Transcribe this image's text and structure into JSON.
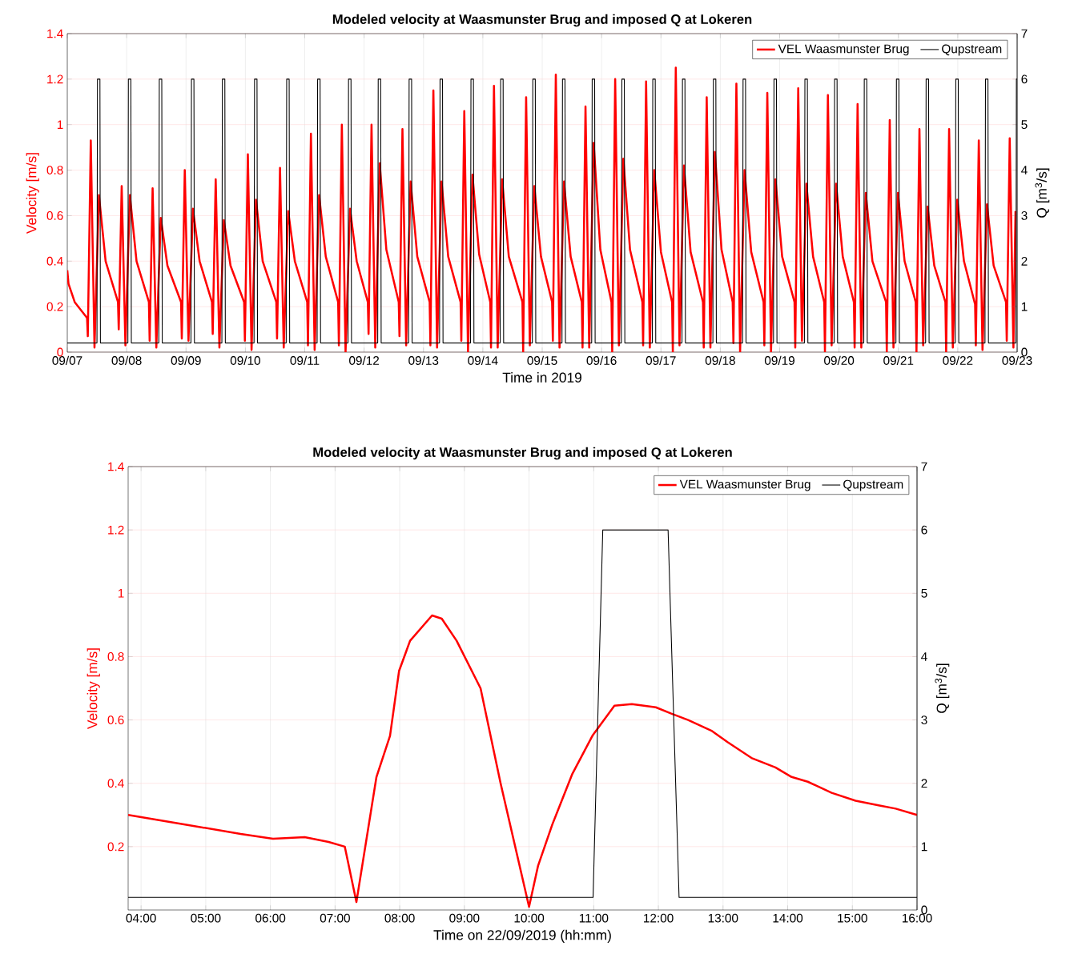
{
  "chart_data": [
    {
      "type": "line",
      "title": "Modeled velocity at Waasmunster Brug and imposed Q at Lokeren",
      "xlabel": "Time in 2019",
      "ylabel": "Velocity [m/s]",
      "y2label": "Q [m$^{3}$/s]",
      "xlim": [
        "2019-09-07",
        "2019-09-23"
      ],
      "xticks": [
        {
          "value": "2019-09-07",
          "label": "09/07"
        },
        {
          "value": "2019-09-08",
          "label": "09/08"
        },
        {
          "value": "2019-09-09",
          "label": "09/09"
        },
        {
          "value": "2019-09-10",
          "label": "09/10"
        },
        {
          "value": "2019-09-11",
          "label": "09/11"
        },
        {
          "value": "2019-09-12",
          "label": "09/12"
        },
        {
          "value": "2019-09-13",
          "label": "09/13"
        },
        {
          "value": "2019-09-14",
          "label": "09/14"
        },
        {
          "value": "2019-09-15",
          "label": "09/15"
        },
        {
          "value": "2019-09-16",
          "label": "09/16"
        },
        {
          "value": "2019-09-17",
          "label": "09/17"
        },
        {
          "value": "2019-09-18",
          "label": "09/18"
        },
        {
          "value": "2019-09-19",
          "label": "09/19"
        },
        {
          "value": "2019-09-20",
          "label": "09/20"
        },
        {
          "value": "2019-09-21",
          "label": "09/21"
        },
        {
          "value": "2019-09-22",
          "label": "09/22"
        },
        {
          "value": "2019-09-23",
          "label": "09/23"
        }
      ],
      "ylim": [
        0,
        1.4
      ],
      "yticks": [
        0,
        0.2,
        0.4,
        0.6,
        0.8,
        1,
        1.2,
        1.4
      ],
      "y2lim": [
        0,
        7
      ],
      "y2ticks": [
        0,
        1,
        2,
        3,
        4,
        5,
        6,
        7
      ],
      "grid": true,
      "legend": "top right",
      "series": [
        {
          "name": "VEL Waasmunster Brug",
          "color": "#ff0000",
          "axis": "y",
          "x": [
            "2019-09-07T00:00",
            "2019-09-07T00:30",
            "2019-09-07T03:00",
            "2019-09-07T08:00",
            "2019-09-07T08:18",
            "2019-09-07T09:30",
            "2019-09-07T11:00",
            "2019-09-07T12:48",
            "2019-09-07T15:30",
            "2019-09-07T20:30",
            "2019-09-07T20:48",
            "2019-09-07T22:00",
            "2019-09-07T23:30",
            "2019-09-08T01:18",
            "2019-09-08T04:00",
            "2019-09-08T09:00",
            "2019-09-08T09:18",
            "2019-09-08T10:30",
            "2019-09-08T12:00",
            "2019-09-08T13:48",
            "2019-09-08T16:30",
            "2019-09-08T22:00",
            "2019-09-08T22:18",
            "2019-09-08T23:30",
            "2019-09-09T01:00",
            "2019-09-09T02:48",
            "2019-09-09T05:30",
            "2019-09-09T10:30",
            "2019-09-09T10:48",
            "2019-09-09T12:00",
            "2019-09-09T13:30",
            "2019-09-09T15:18",
            "2019-09-09T18:00",
            "2019-09-09T23:30",
            "2019-09-09T23:48",
            "2019-09-10T01:00",
            "2019-09-10T02:30",
            "2019-09-10T04:18",
            "2019-09-10T07:00",
            "2019-09-10T12:30",
            "2019-09-10T12:48",
            "2019-09-10T14:00",
            "2019-09-10T15:30",
            "2019-09-10T17:18",
            "2019-09-10T20:00",
            "2019-09-11T01:00",
            "2019-09-11T01:18",
            "2019-09-11T02:30",
            "2019-09-11T04:00",
            "2019-09-11T05:48",
            "2019-09-11T08:30",
            "2019-09-11T13:30",
            "2019-09-11T13:48",
            "2019-09-11T15:00",
            "2019-09-11T16:30",
            "2019-09-11T18:18",
            "2019-09-11T21:00",
            "2019-09-12T01:30",
            "2019-09-12T01:48",
            "2019-09-12T03:00",
            "2019-09-12T04:30",
            "2019-09-12T06:18",
            "2019-09-12T09:00",
            "2019-09-12T14:00",
            "2019-09-12T14:18",
            "2019-09-12T15:30",
            "2019-09-12T17:00",
            "2019-09-12T18:48",
            "2019-09-12T21:30",
            "2019-09-13T02:30",
            "2019-09-13T02:48",
            "2019-09-13T04:00",
            "2019-09-13T05:30",
            "2019-09-13T07:18",
            "2019-09-13T10:00",
            "2019-09-13T15:00",
            "2019-09-13T15:18",
            "2019-09-13T16:30",
            "2019-09-13T18:00",
            "2019-09-13T19:48",
            "2019-09-13T22:30",
            "2019-09-14T03:00",
            "2019-09-14T03:18",
            "2019-09-14T04:30",
            "2019-09-14T06:00",
            "2019-09-14T07:48",
            "2019-09-14T10:30",
            "2019-09-14T16:00",
            "2019-09-14T16:18",
            "2019-09-14T17:30",
            "2019-09-14T19:00",
            "2019-09-14T20:48",
            "2019-09-14T23:30",
            "2019-09-15T04:00",
            "2019-09-15T04:18",
            "2019-09-15T05:30",
            "2019-09-15T07:00",
            "2019-09-15T08:48",
            "2019-09-15T11:30",
            "2019-09-15T16:00",
            "2019-09-15T16:18",
            "2019-09-15T17:30",
            "2019-09-15T19:00",
            "2019-09-15T20:48",
            "2019-09-15T23:30",
            "2019-09-16T04:00",
            "2019-09-16T04:18",
            "2019-09-16T05:30",
            "2019-09-16T07:00",
            "2019-09-16T08:48",
            "2019-09-16T11:30",
            "2019-09-16T16:30",
            "2019-09-16T16:48",
            "2019-09-16T18:00",
            "2019-09-16T19:30",
            "2019-09-16T21:18",
            "2019-09-17T00:00",
            "2019-09-17T04:30",
            "2019-09-17T04:48",
            "2019-09-17T06:00",
            "2019-09-17T07:30",
            "2019-09-17T09:18",
            "2019-09-17T12:00",
            "2019-09-17T17:00",
            "2019-09-17T17:18",
            "2019-09-17T18:30",
            "2019-09-17T20:00",
            "2019-09-17T21:48",
            "2019-09-18T00:30",
            "2019-09-18T05:00",
            "2019-09-18T05:18",
            "2019-09-18T06:30",
            "2019-09-18T08:00",
            "2019-09-18T09:48",
            "2019-09-18T12:30",
            "2019-09-18T17:30",
            "2019-09-18T17:48",
            "2019-09-18T19:00",
            "2019-09-18T20:30",
            "2019-09-18T22:18",
            "2019-09-19T01:00",
            "2019-09-19T06:00",
            "2019-09-19T06:18",
            "2019-09-19T07:30",
            "2019-09-19T09:00",
            "2019-09-19T10:48",
            "2019-09-19T13:30",
            "2019-09-19T18:00",
            "2019-09-19T18:18",
            "2019-09-19T19:30",
            "2019-09-19T21:00",
            "2019-09-19T22:48",
            "2019-09-20T01:30",
            "2019-09-20T06:00",
            "2019-09-20T06:18",
            "2019-09-20T07:30",
            "2019-09-20T09:00",
            "2019-09-20T10:48",
            "2019-09-20T13:30",
            "2019-09-20T19:00",
            "2019-09-20T19:18",
            "2019-09-20T20:30",
            "2019-09-20T22:00",
            "2019-09-20T23:48",
            "2019-09-21T02:30",
            "2019-09-21T07:00",
            "2019-09-21T07:18",
            "2019-09-21T08:30",
            "2019-09-21T10:00",
            "2019-09-21T11:48",
            "2019-09-21T14:30",
            "2019-09-21T19:00",
            "2019-09-21T19:18",
            "2019-09-21T20:30",
            "2019-09-21T22:00",
            "2019-09-21T23:48",
            "2019-09-22T02:30",
            "2019-09-22T07:00",
            "2019-09-22T07:18",
            "2019-09-22T08:30",
            "2019-09-22T10:00",
            "2019-09-22T11:48",
            "2019-09-22T14:30",
            "2019-09-22T19:30",
            "2019-09-22T19:48",
            "2019-09-22T21:00",
            "2019-09-22T22:30",
            "2019-09-22T23:20"
          ],
          "values": [
            0.36,
            0.3,
            0.22,
            0.15,
            0.07,
            0.93,
            0.02,
            0.69,
            0.4,
            0.22,
            0.1,
            0.73,
            0.03,
            0.69,
            0.4,
            0.22,
            0.05,
            0.72,
            0.02,
            0.59,
            0.38,
            0.22,
            0.06,
            0.8,
            0.05,
            0.63,
            0.4,
            0.22,
            0.08,
            0.76,
            0.02,
            0.58,
            0.38,
            0.22,
            0.05,
            0.87,
            0.01,
            0.67,
            0.4,
            0.22,
            0.06,
            0.81,
            0.02,
            0.62,
            0.4,
            0.22,
            0.03,
            0.96,
            0.01,
            0.69,
            0.42,
            0.22,
            0.03,
            1.0,
            0.0,
            0.63,
            0.4,
            0.22,
            0.08,
            1.0,
            0.02,
            0.83,
            0.45,
            0.22,
            0.07,
            0.98,
            0.03,
            0.75,
            0.42,
            0.22,
            0.03,
            1.15,
            0.02,
            0.75,
            0.42,
            0.22,
            0.05,
            1.06,
            0.0,
            0.78,
            0.43,
            0.22,
            0.02,
            1.17,
            0.02,
            0.76,
            0.42,
            0.22,
            0.0,
            1.12,
            0.03,
            0.73,
            0.42,
            0.22,
            0.05,
            1.22,
            0.02,
            0.75,
            0.42,
            0.22,
            0.02,
            1.08,
            0.02,
            0.92,
            0.45,
            0.22,
            0.0,
            1.2,
            0.03,
            0.85,
            0.45,
            0.22,
            0.03,
            1.19,
            0.02,
            0.8,
            0.44,
            0.22,
            0.0,
            1.25,
            0.03,
            0.82,
            0.44,
            0.22,
            0.02,
            1.12,
            0.02,
            0.88,
            0.45,
            0.22,
            0.04,
            1.18,
            0.0,
            0.8,
            0.44,
            0.22,
            0.03,
            1.14,
            0.0,
            0.76,
            0.42,
            0.22,
            0.02,
            1.16,
            0.05,
            0.74,
            0.42,
            0.22,
            0.0,
            1.13,
            0.03,
            0.74,
            0.42,
            0.22,
            0.02,
            1.09,
            0.02,
            0.7,
            0.4,
            0.22,
            0.0,
            1.02,
            0.02,
            0.7,
            0.4,
            0.22,
            0.0,
            0.98,
            0.03,
            0.64,
            0.38,
            0.22,
            0.0,
            0.98,
            0.02,
            0.67,
            0.4,
            0.21,
            0.03,
            0.93,
            0.01,
            0.65,
            0.38,
            0.22,
            0.05,
            0.94,
            0.02,
            0.62
          ]
        },
        {
          "name": "Qupstream",
          "color": "#000000",
          "axis": "y2",
          "x": [
            "2019-09-07T00:00",
            "2019-09-07T12:00",
            "2019-09-07T12:12",
            "2019-09-07T13:12",
            "2019-09-07T13:24",
            "2019-09-08T00:30",
            "2019-09-08T00:42",
            "2019-09-08T01:42",
            "2019-09-08T01:54",
            "2019-09-08T13:00",
            "2019-09-08T13:12",
            "2019-09-08T14:12",
            "2019-09-08T14:24",
            "2019-09-09T02:00",
            "2019-09-09T02:12",
            "2019-09-09T03:12",
            "2019-09-09T03:24",
            "2019-09-09T14:30",
            "2019-09-09T14:42",
            "2019-09-09T15:42",
            "2019-09-09T15:54",
            "2019-09-10T03:30",
            "2019-09-10T03:42",
            "2019-09-10T04:42",
            "2019-09-10T04:54",
            "2019-09-10T16:30",
            "2019-09-10T16:42",
            "2019-09-10T17:42",
            "2019-09-10T17:54",
            "2019-09-11T05:00",
            "2019-09-11T05:12",
            "2019-09-11T06:12",
            "2019-09-11T06:24",
            "2019-09-11T17:30",
            "2019-09-11T17:42",
            "2019-09-11T18:42",
            "2019-09-11T18:54",
            "2019-09-12T05:30",
            "2019-09-12T05:42",
            "2019-09-12T06:42",
            "2019-09-12T06:54",
            "2019-09-12T18:00",
            "2019-09-12T18:12",
            "2019-09-12T19:12",
            "2019-09-12T19:24",
            "2019-09-13T06:30",
            "2019-09-13T06:42",
            "2019-09-13T07:42",
            "2019-09-13T07:54",
            "2019-09-13T19:00",
            "2019-09-13T19:12",
            "2019-09-13T20:12",
            "2019-09-13T20:24",
            "2019-09-14T07:00",
            "2019-09-14T07:12",
            "2019-09-14T08:12",
            "2019-09-14T08:24",
            "2019-09-14T20:00",
            "2019-09-14T20:12",
            "2019-09-14T21:12",
            "2019-09-14T21:24",
            "2019-09-15T08:00",
            "2019-09-15T08:12",
            "2019-09-15T09:12",
            "2019-09-15T09:24",
            "2019-09-15T20:00",
            "2019-09-15T20:12",
            "2019-09-15T21:12",
            "2019-09-15T21:24",
            "2019-09-16T08:00",
            "2019-09-16T08:12",
            "2019-09-16T09:12",
            "2019-09-16T09:24",
            "2019-09-16T20:30",
            "2019-09-16T20:42",
            "2019-09-16T21:42",
            "2019-09-16T21:54",
            "2019-09-17T08:30",
            "2019-09-17T08:42",
            "2019-09-17T09:42",
            "2019-09-17T09:54",
            "2019-09-17T21:00",
            "2019-09-17T21:12",
            "2019-09-17T22:12",
            "2019-09-17T22:24",
            "2019-09-18T09:00",
            "2019-09-18T09:12",
            "2019-09-18T10:12",
            "2019-09-18T10:24",
            "2019-09-18T21:30",
            "2019-09-18T21:42",
            "2019-09-18T22:42",
            "2019-09-18T22:54",
            "2019-09-19T10:00",
            "2019-09-19T10:12",
            "2019-09-19T11:12",
            "2019-09-19T11:24",
            "2019-09-19T22:00",
            "2019-09-19T22:12",
            "2019-09-19T23:12",
            "2019-09-19T23:24",
            "2019-09-20T10:00",
            "2019-09-20T10:12",
            "2019-09-20T11:12",
            "2019-09-20T11:24",
            "2019-09-20T23:00",
            "2019-09-20T23:12",
            "2019-09-21T00:12",
            "2019-09-21T00:24",
            "2019-09-21T11:00",
            "2019-09-21T11:12",
            "2019-09-21T12:12",
            "2019-09-21T12:24",
            "2019-09-21T23:00",
            "2019-09-21T23:12",
            "2019-09-22T00:12",
            "2019-09-22T00:24",
            "2019-09-22T11:00",
            "2019-09-22T11:12",
            "2019-09-22T12:12",
            "2019-09-22T12:24",
            "2019-09-22T23:30",
            "2019-09-22T23:42",
            "2019-09-23T00:00"
          ],
          "values": [
            0.2,
            0.2,
            6,
            6,
            0.2,
            0.2,
            6,
            6,
            0.2,
            0.2,
            6,
            6,
            0.2,
            0.2,
            6,
            6,
            0.2,
            0.2,
            6,
            6,
            0.2,
            0.2,
            6,
            6,
            0.2,
            0.2,
            6,
            6,
            0.2,
            0.2,
            6,
            6,
            0.2,
            0.2,
            6,
            6,
            0.2,
            0.2,
            6,
            6,
            0.2,
            0.2,
            6,
            6,
            0.2,
            0.2,
            6,
            6,
            0.2,
            0.2,
            6,
            6,
            0.2,
            0.2,
            6,
            6,
            0.2,
            0.2,
            6,
            6,
            0.2,
            0.2,
            6,
            6,
            0.2,
            0.2,
            6,
            6,
            0.2,
            0.2,
            6,
            6,
            0.2,
            0.2,
            6,
            6,
            0.2,
            0.2,
            6,
            6,
            0.2,
            0.2,
            6,
            6,
            0.2,
            0.2,
            6,
            6,
            0.2,
            0.2,
            6,
            6,
            0.2,
            0.2,
            6,
            6,
            0.2,
            0.2,
            6,
            6,
            0.2,
            0.2,
            6,
            6,
            0.2,
            0.2,
            6,
            6,
            0.2,
            0.2,
            6,
            6,
            0.2,
            0.2,
            6,
            6,
            0.2,
            0.2,
            6,
            6,
            0.2,
            0.2,
            6,
            6
          ]
        }
      ]
    },
    {
      "type": "line",
      "title": "Modeled velocity at Waasmunster Brug and imposed Q at Lokeren",
      "xlabel": "Time on 22/09/2019 (hh:mm)",
      "ylabel": "Velocity [m/s]",
      "y2label": "Q [m$^{3}$/s]",
      "xlim": [
        3.8,
        16
      ],
      "xticks": [
        {
          "value": 4,
          "label": "04:00"
        },
        {
          "value": 5,
          "label": "05:00"
        },
        {
          "value": 6,
          "label": "06:00"
        },
        {
          "value": 7,
          "label": "07:00"
        },
        {
          "value": 8,
          "label": "08:00"
        },
        {
          "value": 9,
          "label": "09:00"
        },
        {
          "value": 10,
          "label": "10:00"
        },
        {
          "value": 11,
          "label": "11:00"
        },
        {
          "value": 12,
          "label": "12:00"
        },
        {
          "value": 13,
          "label": "13:00"
        },
        {
          "value": 14,
          "label": "14:00"
        },
        {
          "value": 15,
          "label": "15:00"
        },
        {
          "value": 16,
          "label": "16:00"
        }
      ],
      "ylim": [
        0,
        1.4
      ],
      "yticks": [
        0.2,
        0.4,
        0.6,
        0.8,
        1,
        1.2,
        1.4
      ],
      "y2lim": [
        0,
        7
      ],
      "y2ticks": [
        0,
        1,
        2,
        3,
        4,
        5,
        6,
        7
      ],
      "grid": true,
      "legend": "top right",
      "series": [
        {
          "name": "VEL Waasmunster Brug",
          "color": "#ff0000",
          "axis": "y",
          "x": [
            3.8,
            4.68,
            5.54,
            6.04,
            6.53,
            6.9,
            7.15,
            7.33,
            7.64,
            7.85,
            7.99,
            8.16,
            8.5,
            8.65,
            8.88,
            9.25,
            9.56,
            10.0,
            10.14,
            10.36,
            10.67,
            10.98,
            11.32,
            11.59,
            11.96,
            12.2,
            12.46,
            12.83,
            13.07,
            13.44,
            13.81,
            14.06,
            14.31,
            14.68,
            15.05,
            15.42,
            15.67,
            16.0
          ],
          "values": [
            0.3,
            0.27,
            0.24,
            0.225,
            0.23,
            0.215,
            0.2,
            0.025,
            0.42,
            0.55,
            0.755,
            0.85,
            0.93,
            0.92,
            0.85,
            0.7,
            0.4,
            0.01,
            0.14,
            0.27,
            0.43,
            0.55,
            0.645,
            0.65,
            0.64,
            0.62,
            0.6,
            0.565,
            0.53,
            0.48,
            0.45,
            0.42,
            0.405,
            0.37,
            0.345,
            0.33,
            0.32,
            0.3
          ]
        },
        {
          "name": "Qupstream",
          "color": "#000000",
          "axis": "y2",
          "x": [
            3.8,
            10.99,
            11.14,
            12.15,
            12.32,
            16.0
          ],
          "values": [
            0.2,
            0.2,
            6,
            6,
            0.2,
            0.2
          ]
        }
      ]
    }
  ]
}
